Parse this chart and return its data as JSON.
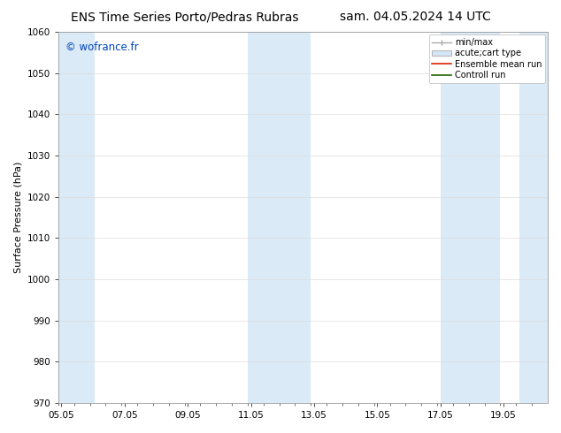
{
  "title_left": "ENS Time Series Porto/Pedras Rubras",
  "title_right": "sam. 04.05.2024 14 UTC",
  "ylabel": "Surface Pressure (hPa)",
  "ylim": [
    970,
    1060
  ],
  "yticks": [
    970,
    980,
    990,
    1000,
    1010,
    1020,
    1030,
    1040,
    1050,
    1060
  ],
  "xtick_labels": [
    "05.05",
    "07.05",
    "09.05",
    "11.05",
    "13.05",
    "15.05",
    "17.05",
    "19.05"
  ],
  "watermark": "© wofrance.fr",
  "watermark_color": "#0044bb",
  "bg_color": "#ffffff",
  "shaded_bands_color": "#daeaf7",
  "legend_items": [
    {
      "label": "min/max"
    },
    {
      "label": "acute;cart type"
    },
    {
      "label": "Ensemble mean run"
    },
    {
      "label": "Controll run"
    }
  ],
  "title_fontsize": 10,
  "tick_fontsize": 7.5,
  "ylabel_fontsize": 8,
  "legend_fontsize": 7
}
